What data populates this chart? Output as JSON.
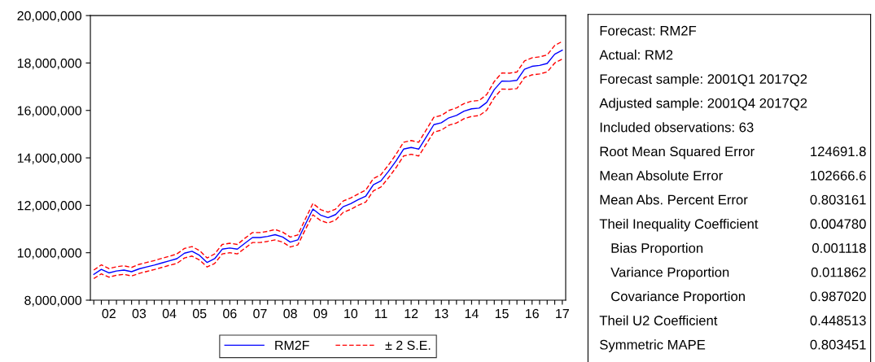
{
  "chart_data": [
    {
      "type": "line",
      "ylim": [
        8000000,
        20000000
      ],
      "categories": [
        null,
        null,
        "02",
        null,
        null,
        null,
        "03",
        null,
        null,
        null,
        "04",
        null,
        null,
        null,
        "05",
        null,
        null,
        null,
        "06",
        null,
        null,
        null,
        "07",
        null,
        null,
        null,
        "08",
        null,
        null,
        null,
        "09",
        null,
        null,
        null,
        "10",
        null,
        null,
        null,
        "11",
        null,
        null,
        null,
        "12",
        null,
        null,
        null,
        "13",
        null,
        null,
        null,
        "14",
        null,
        null,
        null,
        "15",
        null,
        null,
        null,
        "16",
        null,
        null,
        null,
        "17"
      ],
      "series": [
        {
          "name": "RM2F",
          "color": "#0000ff",
          "line_style": "solid",
          "values": [
            9090000,
            9300000,
            9150000,
            9230000,
            9270000,
            9200000,
            9320000,
            9400000,
            9480000,
            9570000,
            9660000,
            9750000,
            9980000,
            10060000,
            9890000,
            9590000,
            9750000,
            10150000,
            10200000,
            10150000,
            10400000,
            10640000,
            10640000,
            10690000,
            10760000,
            10660000,
            10450000,
            10540000,
            11200000,
            11840000,
            11590000,
            11480000,
            11610000,
            11940000,
            12070000,
            12240000,
            12390000,
            12870000,
            13030000,
            13430000,
            13870000,
            14370000,
            14440000,
            14370000,
            14880000,
            15400000,
            15480000,
            15690000,
            15790000,
            15970000,
            16070000,
            16100000,
            16340000,
            16880000,
            17240000,
            17230000,
            17270000,
            17740000,
            17860000,
            17900000,
            17980000,
            18370000,
            18540000
          ]
        },
        {
          "name": "± 2 S.E.",
          "color": "#ff0000",
          "line_style": "dashed",
          "values": [
            9270000,
            9490000,
            9330000,
            9410000,
            9450000,
            9380000,
            9510000,
            9590000,
            9670000,
            9760000,
            9850000,
            9950000,
            10180000,
            10260000,
            10090000,
            9780000,
            9950000,
            10350000,
            10400000,
            10350000,
            10610000,
            10850000,
            10850000,
            10900000,
            10980000,
            10870000,
            10660000,
            10750000,
            11420000,
            12080000,
            11820000,
            11710000,
            11840000,
            12180000,
            12310000,
            12480000,
            12640000,
            13130000,
            13290000,
            13700000,
            14150000,
            14660000,
            14730000,
            14660000,
            15180000,
            15710000,
            15790000,
            16000000,
            16110000,
            16290000,
            16390000,
            16420000,
            16670000,
            17220000,
            17580000,
            17570000,
            17620000,
            18090000,
            18220000,
            18260000,
            18340000,
            18740000,
            18910000
          ]
        },
        {
          "color": "#ff0000",
          "line_style": "dashed",
          "values": [
            8910000,
            9110000,
            8970000,
            9050000,
            9090000,
            9020000,
            9130000,
            9210000,
            9290000,
            9380000,
            9470000,
            9550000,
            9780000,
            9860000,
            9690000,
            9400000,
            9550000,
            9950000,
            10000000,
            9950000,
            10190000,
            10430000,
            10430000,
            10480000,
            10540000,
            10450000,
            10240000,
            10330000,
            10980000,
            11600000,
            11360000,
            11250000,
            11380000,
            11700000,
            11830000,
            12000000,
            12140000,
            12610000,
            12770000,
            13160000,
            13590000,
            14080000,
            14150000,
            14080000,
            14580000,
            15090000,
            15170000,
            15380000,
            15470000,
            15650000,
            15750000,
            15780000,
            16010000,
            16540000,
            16900000,
            16890000,
            16920000,
            17390000,
            17500000,
            17540000,
            17620000,
            18000000,
            18170000
          ]
        }
      ],
      "yticks": [
        {
          "value": 8000000,
          "label": "8,000,000"
        },
        {
          "value": 10000000,
          "label": "10,000,000"
        },
        {
          "value": 12000000,
          "label": "12,000,000"
        },
        {
          "value": 14000000,
          "label": "14,000,000"
        },
        {
          "value": 16000000,
          "label": "16,000,000"
        },
        {
          "value": 18000000,
          "label": "18,000,000"
        },
        {
          "value": 20000000,
          "label": "20,000,000"
        }
      ],
      "grid": false,
      "legend": "bottom",
      "marker": "none"
    },
    {
      "type": "other",
      "categories": [
        "Forecast: RM2F",
        "Actual: RM2",
        "Forecast sample: 2001Q1 2017Q2",
        "Adjusted sample: 2001Q4 2017Q2",
        "Included observations: 63",
        "Root Mean Squared Error",
        "Mean Absolute Error",
        "Mean Abs. Percent Error",
        "Theil Inequality Coefficient",
        "   Bias Proportion",
        "   Variance Proportion",
        "   Covariance Proportion",
        "Theil U2 Coefficient",
        "Symmetric MAPE"
      ],
      "value_labels": [
        null,
        null,
        null,
        null,
        null,
        "124691.8",
        "102666.6",
        "0.803161",
        "0.004780",
        "0.001118",
        "0.011862",
        "0.987020",
        "0.448513",
        "0.803451"
      ]
    }
  ]
}
